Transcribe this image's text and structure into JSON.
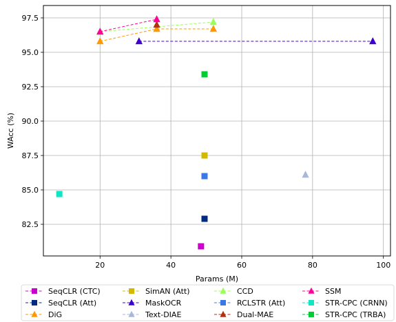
{
  "chart_data": {
    "type": "scatter",
    "xlabel": "Params (M)",
    "ylabel": "WAcc (%)",
    "xlim": [
      4,
      102
    ],
    "ylim": [
      80.2,
      98.4
    ],
    "xticks": [
      20,
      40,
      60,
      80,
      100
    ],
    "yticks": [
      82.5,
      85.0,
      87.5,
      90.0,
      92.5,
      95.0,
      97.5
    ],
    "grid": true,
    "legend_position": "below",
    "legend_columns": 4,
    "series": [
      {
        "name": "SeqCLR (CTC)",
        "color": "#cc00cc",
        "marker": "square",
        "x": [
          48.5
        ],
        "y": [
          80.9
        ]
      },
      {
        "name": "SeqCLR (Att)",
        "color": "#002b80",
        "marker": "square",
        "x": [
          49.5
        ],
        "y": [
          82.9
        ]
      },
      {
        "name": "DiG",
        "color": "#ff9900",
        "marker": "triangle",
        "x": [
          20,
          36,
          52
        ],
        "y": [
          95.8,
          96.7,
          96.7
        ]
      },
      {
        "name": "SimAN (Att)",
        "color": "#d4b800",
        "marker": "square",
        "x": [
          49.5
        ],
        "y": [
          87.5
        ]
      },
      {
        "name": "MaskOCR",
        "color": "#3d00cc",
        "marker": "triangle",
        "x": [
          31,
          97
        ],
        "y": [
          95.8,
          95.8
        ]
      },
      {
        "name": "Text-DIAE",
        "color": "#a8b8d8",
        "marker": "triangle",
        "x": [
          78
        ],
        "y": [
          86.1
        ]
      },
      {
        "name": "CCD",
        "color": "#99ff55",
        "marker": "triangle",
        "x": [
          20,
          52
        ],
        "y": [
          96.5,
          97.2
        ]
      },
      {
        "name": "RCLSTR (Att)",
        "color": "#3b78e7",
        "marker": "square",
        "x": [
          49.5
        ],
        "y": [
          86.0
        ]
      },
      {
        "name": "Dual-MAE",
        "color": "#b03010",
        "marker": "triangle",
        "x": [
          36
        ],
        "y": [
          97.0
        ]
      },
      {
        "name": "SSM",
        "color": "#ff0099",
        "marker": "triangle",
        "x": [
          20,
          36
        ],
        "y": [
          96.5,
          97.4
        ]
      },
      {
        "name": "STR-CPC (CRNN)",
        "color": "#11e6c4",
        "marker": "square",
        "x": [
          8.5
        ],
        "y": [
          84.7
        ]
      },
      {
        "name": "STR-CPC (TRBA)",
        "color": "#00cc33",
        "marker": "square",
        "x": [
          49.5
        ],
        "y": [
          93.4
        ]
      }
    ]
  }
}
